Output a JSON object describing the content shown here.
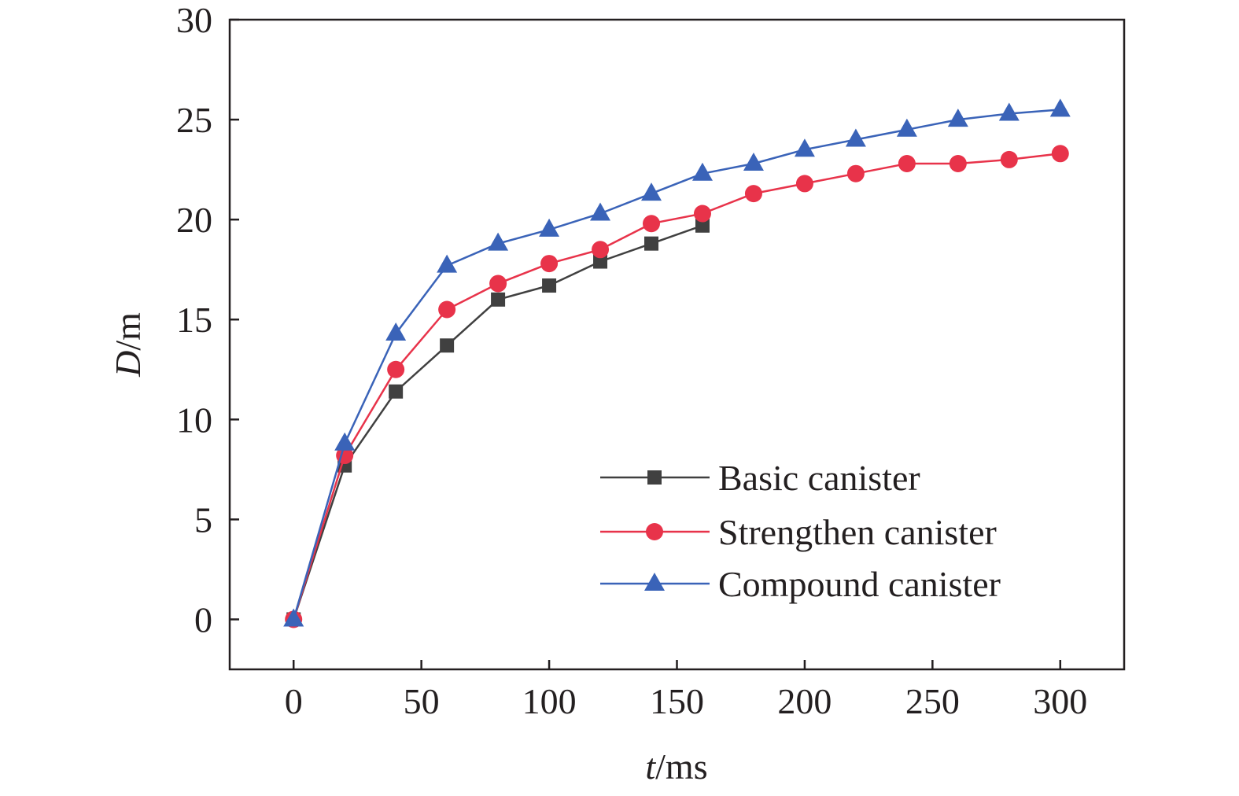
{
  "chart_data": {
    "type": "line",
    "x": [
      0,
      20,
      40,
      60,
      80,
      100,
      120,
      140,
      160,
      180,
      200,
      220,
      240,
      260,
      280,
      300
    ],
    "xlabel": {
      "italic": "t",
      "unit": "/ms"
    },
    "ylabel": {
      "italic": "D",
      "unit": "/m"
    },
    "xlim": [
      -25,
      325
    ],
    "ylim": [
      -2.5,
      30
    ],
    "xticks": [
      0,
      50,
      100,
      150,
      200,
      250,
      300
    ],
    "yticks": [
      0,
      5,
      10,
      15,
      20,
      25,
      30
    ],
    "grid": false,
    "legend_position": "bottom-right",
    "series": [
      {
        "name": "Basic canister",
        "color": "#404040",
        "marker": "square",
        "x": [
          0,
          20,
          40,
          60,
          80,
          100,
          120,
          140,
          160
        ],
        "values": [
          0,
          7.7,
          11.4,
          13.7,
          16.0,
          16.7,
          17.9,
          18.8,
          19.7
        ]
      },
      {
        "name": "Strengthen canister",
        "color": "#e8334a",
        "marker": "circle",
        "x": [
          0,
          20,
          40,
          60,
          80,
          100,
          120,
          140,
          160,
          180,
          200,
          220,
          240,
          260,
          280,
          300
        ],
        "values": [
          0,
          8.2,
          12.5,
          15.5,
          16.8,
          17.8,
          18.5,
          19.8,
          20.3,
          21.3,
          21.8,
          22.3,
          22.8,
          22.8,
          23.0,
          23.3
        ]
      },
      {
        "name": "Compound canister",
        "color": "#3a63b8",
        "marker": "triangle",
        "x": [
          0,
          20,
          40,
          60,
          80,
          100,
          120,
          140,
          160,
          180,
          200,
          220,
          240,
          260,
          280,
          300
        ],
        "values": [
          0,
          8.8,
          14.3,
          17.7,
          18.8,
          19.5,
          20.3,
          21.3,
          22.3,
          22.8,
          23.5,
          24.0,
          24.5,
          25.0,
          25.3,
          25.5
        ]
      }
    ]
  }
}
